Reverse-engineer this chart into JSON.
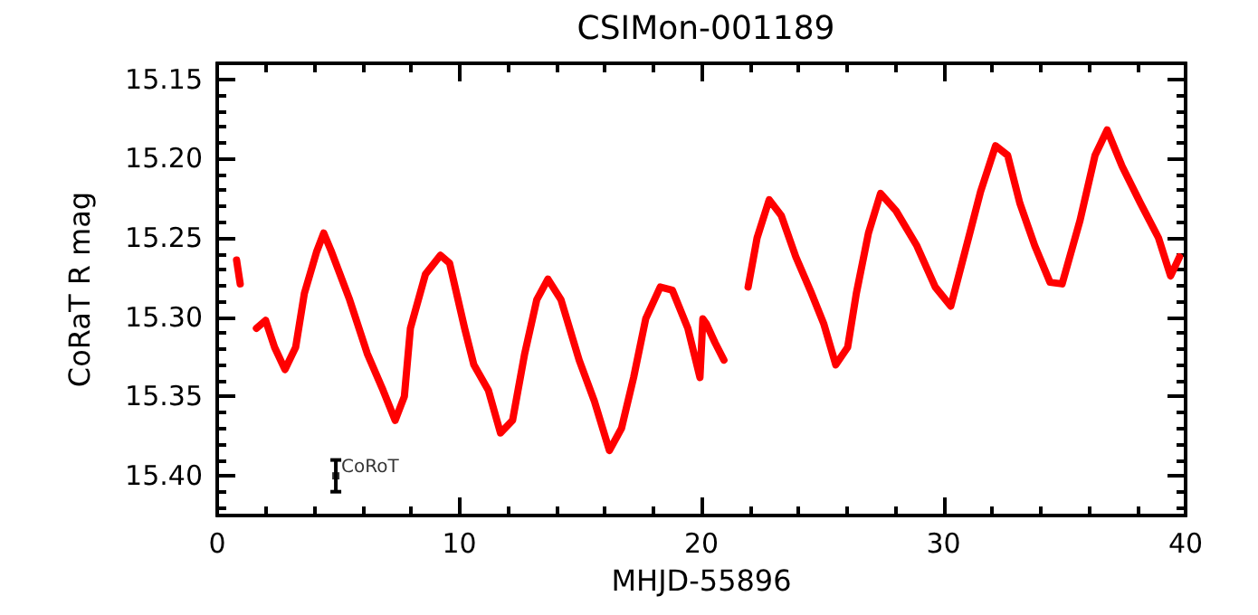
{
  "chart_data": {
    "type": "line",
    "title": "CSIMon-001189",
    "xlabel": "MHJD-55896",
    "ylabel": "CoRaT R mag",
    "xlim": [
      0,
      40
    ],
    "xticks": [
      0,
      10,
      20,
      30,
      40
    ],
    "ylim": [
      15.425,
      15.14
    ],
    "yticks": [
      15.15,
      {
        "value": 15.2,
        "label": "15.20"
      },
      15.25,
      {
        "value": 15.3,
        "label": "15.30"
      },
      15.35,
      {
        "value": 15.4,
        "label": "15.40"
      }
    ],
    "grid": false,
    "marker": "none",
    "line_style": "solid",
    "series": [
      {
        "color": "#ff0000",
        "x": [
          0.8,
          0.95,
          1.3,
          1.62,
          2.0,
          2.37,
          2.8,
          3.24,
          3.6,
          4.1,
          4.4,
          4.7,
          5.47,
          6.2,
          6.85,
          7.35,
          7.73,
          7.98,
          8.6,
          9.22,
          9.6,
          10.22,
          10.6,
          11.2,
          11.7,
          12.2,
          12.7,
          13.2,
          13.66,
          14.2,
          14.95,
          15.58,
          16.2,
          16.7,
          17.2,
          17.7,
          18.3,
          18.8,
          19.44,
          19.94,
          20.06,
          20.2,
          20.56,
          20.93,
          21.4,
          21.93,
          22.3,
          22.8,
          23.3,
          23.9,
          24.55,
          25.05,
          25.55,
          26.04,
          26.4,
          26.9,
          27.4,
          28.04,
          28.9,
          29.66,
          30.3,
          30.9,
          31.53,
          32.15,
          32.65,
          33.15,
          33.77,
          34.4,
          34.9,
          35.64,
          36.26,
          36.76,
          37.38,
          38.13,
          38.88,
          39.38,
          39.75
        ],
        "values": [
          15.264,
          15.279,
          null,
          15.307,
          15.302,
          15.319,
          15.333,
          15.319,
          15.285,
          15.259,
          15.247,
          15.258,
          15.289,
          15.323,
          15.346,
          15.365,
          15.35,
          15.307,
          15.273,
          15.261,
          15.266,
          15.307,
          15.33,
          15.346,
          15.373,
          15.365,
          15.323,
          15.289,
          15.276,
          15.289,
          15.327,
          15.353,
          15.384,
          15.37,
          15.338,
          15.301,
          15.281,
          15.283,
          15.307,
          15.338,
          15.301,
          15.304,
          15.316,
          15.327,
          null,
          15.281,
          15.25,
          15.226,
          15.236,
          15.262,
          15.285,
          15.304,
          15.33,
          15.319,
          15.285,
          15.247,
          15.222,
          15.233,
          15.255,
          15.281,
          15.293,
          15.258,
          15.221,
          15.192,
          15.198,
          15.228,
          15.255,
          15.278,
          15.279,
          15.239,
          15.198,
          15.182,
          15.205,
          15.228,
          15.25,
          15.274,
          15.262
        ]
      },
      {
        "type": "scatter",
        "color": "#000000",
        "x": [
          4.9
        ],
        "values": [
          15.4
        ],
        "errors": [
          0.01
        ],
        "marker": "square"
      }
    ],
    "annotations": [
      {
        "text": "CoRoT",
        "x": 4.9,
        "y": 15.395
      }
    ]
  }
}
